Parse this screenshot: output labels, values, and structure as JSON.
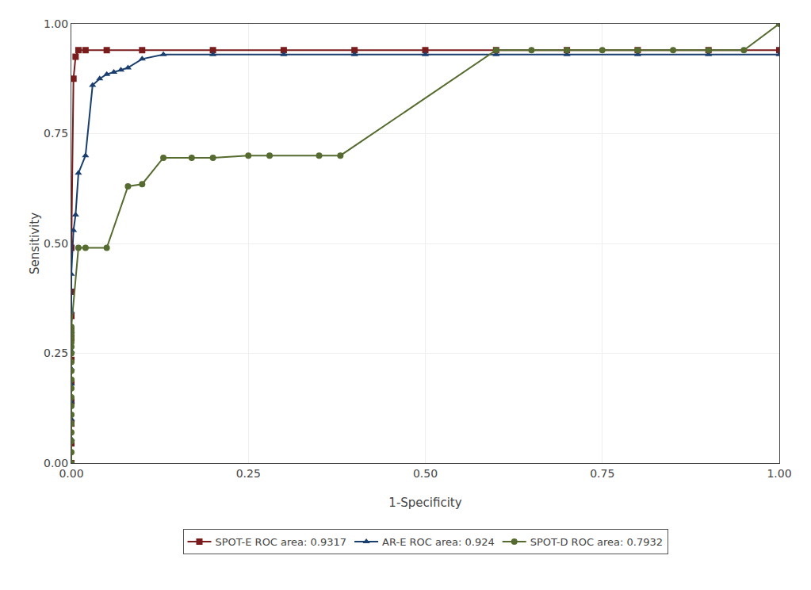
{
  "chart_data": {
    "type": "line",
    "xlabel": "1-Specificity",
    "ylabel": "Sensitivity",
    "xlim": [
      0.0,
      1.0
    ],
    "ylim": [
      0.0,
      1.0
    ],
    "xticks": [
      {
        "value": 0.0,
        "label": "0.00"
      },
      {
        "value": 0.25,
        "label": "0.25"
      },
      {
        "value": 0.5,
        "label": "0.50"
      },
      {
        "value": 0.75,
        "label": "0.75"
      },
      {
        "value": 1.0,
        "label": "1.00"
      }
    ],
    "yticks": [
      {
        "value": 0.0,
        "label": "0.00"
      },
      {
        "value": 0.25,
        "label": "0.25"
      },
      {
        "value": 0.5,
        "label": "0.50"
      },
      {
        "value": 0.75,
        "label": "0.75"
      },
      {
        "value": 1.0,
        "label": "1.00"
      }
    ],
    "grid": true,
    "legend": "bottom",
    "series": [
      {
        "name": "SPOT-E ROC area: 0.9317",
        "color": "#7b1c1c",
        "marker": "square",
        "x": [
          0.0,
          0.0,
          0.0,
          0.0,
          0.0,
          0.0,
          0.0,
          0.0,
          0.0,
          0.0,
          0.003,
          0.006,
          0.01,
          0.02,
          0.05,
          0.1,
          0.2,
          0.3,
          0.4,
          0.5,
          0.6,
          0.7,
          0.8,
          0.9,
          1.0
        ],
        "values": [
          0.0,
          0.045,
          0.09,
          0.14,
          0.185,
          0.235,
          0.285,
          0.335,
          0.39,
          0.49,
          0.875,
          0.925,
          0.94,
          0.94,
          0.94,
          0.94,
          0.94,
          0.94,
          0.94,
          0.94,
          0.94,
          0.94,
          0.94,
          0.94,
          0.94
        ]
      },
      {
        "name": "AR-E ROC area: 0.924",
        "color": "#1a3f6f",
        "marker": "triangle-up",
        "x": [
          0.0,
          0.0,
          0.0,
          0.0,
          0.0,
          0.0,
          0.0,
          0.0,
          0.0,
          0.0,
          0.003,
          0.006,
          0.01,
          0.02,
          0.03,
          0.04,
          0.05,
          0.06,
          0.07,
          0.08,
          0.1,
          0.13,
          0.2,
          0.3,
          0.4,
          0.5,
          0.6,
          0.7,
          0.8,
          0.9,
          1.0
        ],
        "values": [
          0.0,
          0.055,
          0.1,
          0.14,
          0.18,
          0.215,
          0.255,
          0.3,
          0.345,
          0.43,
          0.53,
          0.565,
          0.66,
          0.7,
          0.86,
          0.875,
          0.885,
          0.89,
          0.895,
          0.9,
          0.92,
          0.93,
          0.93,
          0.93,
          0.93,
          0.93,
          0.93,
          0.93,
          0.93,
          0.93,
          0.93
        ]
      },
      {
        "name": "SPOT-D ROC area: 0.7932",
        "color": "#556b2f",
        "marker": "circle",
        "x": [
          0.0,
          0.0,
          0.0,
          0.0,
          0.0,
          0.0,
          0.0,
          0.0,
          0.0,
          0.0,
          0.0,
          0.0,
          0.0,
          0.0,
          0.0,
          0.0,
          0.0,
          0.0,
          0.0,
          0.0,
          0.01,
          0.02,
          0.05,
          0.08,
          0.1,
          0.13,
          0.17,
          0.2,
          0.25,
          0.28,
          0.35,
          0.38,
          0.6,
          0.65,
          0.7,
          0.75,
          0.8,
          0.85,
          0.9,
          0.95,
          1.0
        ],
        "values": [
          0.0,
          0.025,
          0.05,
          0.07,
          0.09,
          0.11,
          0.13,
          0.15,
          0.17,
          0.19,
          0.21,
          0.23,
          0.25,
          0.265,
          0.275,
          0.285,
          0.295,
          0.3,
          0.305,
          0.31,
          0.49,
          0.49,
          0.49,
          0.63,
          0.635,
          0.695,
          0.695,
          0.695,
          0.7,
          0.7,
          0.7,
          0.7,
          0.94,
          0.94,
          0.94,
          0.94,
          0.94,
          0.94,
          0.94,
          0.94,
          1.0
        ]
      }
    ]
  }
}
